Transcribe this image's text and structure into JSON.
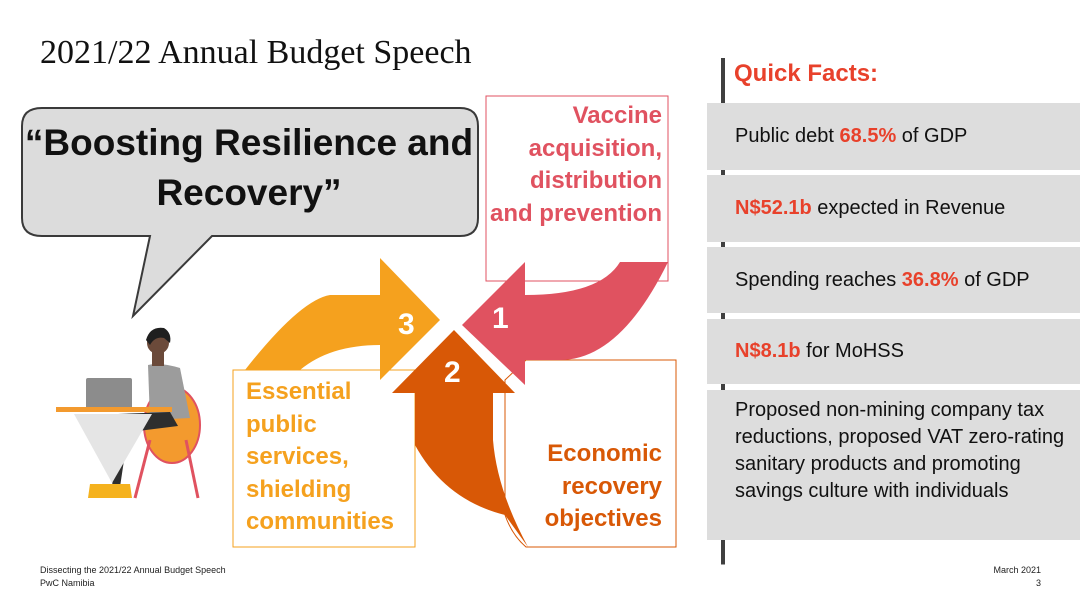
{
  "slide": {
    "title": "2021/22 Annual Budget Speech",
    "quote": "“Boosting Resilience and Recovery”"
  },
  "pillars": [
    {
      "number": "1",
      "label": "Vaccine acquisition, distribution and prevention",
      "color": "#e05260"
    },
    {
      "number": "2",
      "label": "Economic recovery objectives",
      "color": "#d85806"
    },
    {
      "number": "3",
      "label": "Essential public services, shielding communities",
      "color": "#f5a11e"
    }
  ],
  "quick_facts": {
    "heading": "Quick Facts:",
    "accent_color": "#e8412b",
    "items": [
      {
        "pre": "Public debt ",
        "highlight": "68.5%",
        "post": " of GDP"
      },
      {
        "pre": "",
        "highlight": "N$52.1b",
        "post": " expected in Revenue"
      },
      {
        "pre": "Spending reaches ",
        "highlight": "36.8%",
        "post": " of GDP"
      },
      {
        "pre": "",
        "highlight": "N$8.1b",
        "post": " for MoHSS"
      },
      {
        "text": "Proposed non-mining company tax reductions, proposed VAT zero-rating sanitary products and promoting savings culture with individuals"
      }
    ]
  },
  "footer": {
    "left_line1": "Dissecting the 2021/22 Annual Budget Speech",
    "left_line2": "PwC Namibia",
    "date": "March 2021",
    "page_number": "3"
  }
}
